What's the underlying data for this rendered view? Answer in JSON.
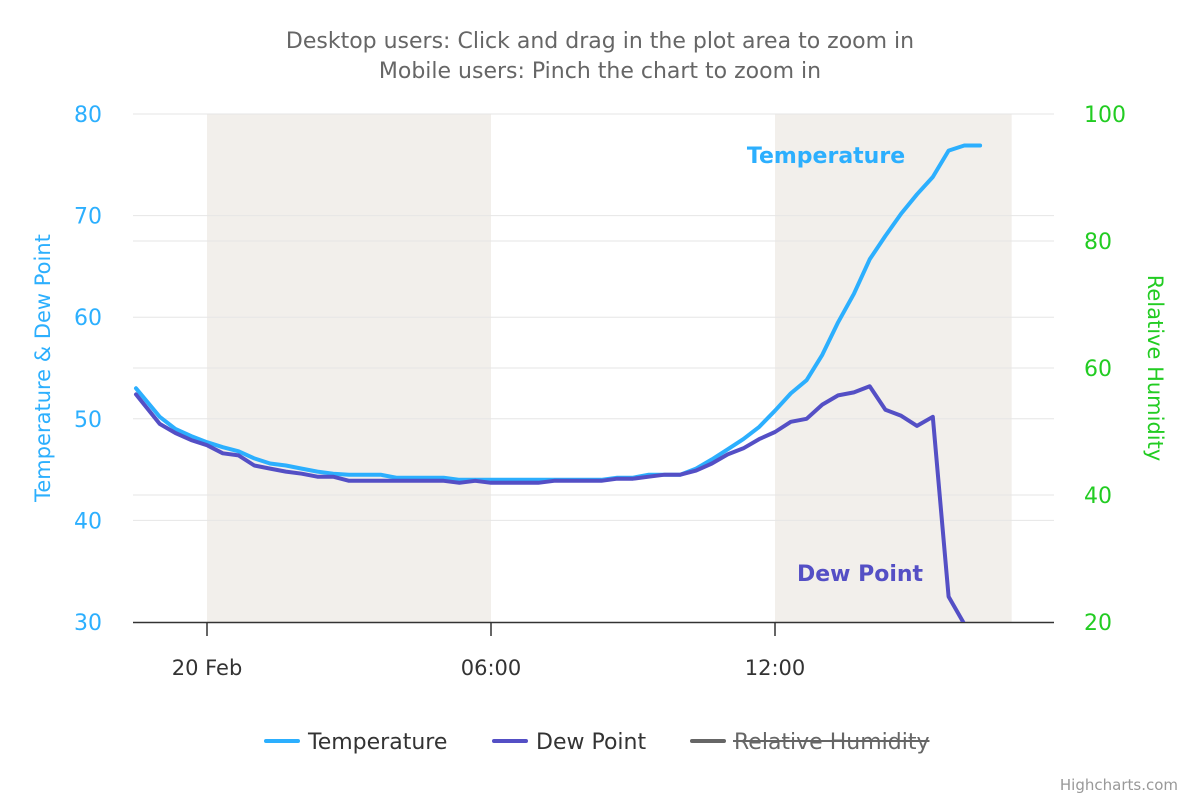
{
  "chart_data": {
    "type": "line",
    "subtitle_lines": [
      "Desktop users: Click and drag in the plot area to zoom in",
      "Mobile users: Pinch the chart to zoom in"
    ],
    "x_axis": {
      "type": "datetime",
      "range": [
        "2024-02-19T22:30",
        "2024-02-20T17:00"
      ],
      "ticks": [
        {
          "x": "2024-02-20T00:00",
          "label": "20 Feb"
        },
        {
          "x": "2024-02-20T06:00",
          "label": "06:00"
        },
        {
          "x": "2024-02-20T12:00",
          "label": "12:00"
        }
      ],
      "plot_bands": [
        {
          "from": "2024-02-20T00:00",
          "to": "2024-02-20T06:00",
          "color": "#f2efeb"
        },
        {
          "from": "2024-02-20T12:00",
          "to": "2024-02-20T17:00",
          "color": "#f2efeb"
        }
      ]
    },
    "y_axis_left": {
      "title": "Temperature & Dew Point",
      "range": [
        30,
        80
      ],
      "ticks": [
        "30",
        "40",
        "50",
        "60",
        "70",
        "80"
      ],
      "color": "#2caffe",
      "grid": true
    },
    "y_axis_right": {
      "title": "Relative Humidity",
      "range": [
        20,
        100
      ],
      "ticks": [
        "20",
        "40",
        "60",
        "80",
        "100"
      ],
      "color": "#22cc22"
    },
    "series": [
      {
        "name": "Temperature",
        "color": "#2caffe",
        "label": "Temperature",
        "points": [
          [
            "2024-02-19T22:30",
            53.0
          ],
          [
            "2024-02-19T23:00",
            50.2
          ],
          [
            "2024-02-19T23:20",
            49.0
          ],
          [
            "2024-02-19T23:40",
            48.3
          ],
          [
            "2024-02-20T00:00",
            47.7
          ],
          [
            "2024-02-20T00:20",
            47.2
          ],
          [
            "2024-02-20T00:40",
            46.8
          ],
          [
            "2024-02-20T01:00",
            46.1
          ],
          [
            "2024-02-20T01:20",
            45.6
          ],
          [
            "2024-02-20T01:40",
            45.4
          ],
          [
            "2024-02-20T02:00",
            45.1
          ],
          [
            "2024-02-20T02:20",
            44.8
          ],
          [
            "2024-02-20T02:40",
            44.6
          ],
          [
            "2024-02-20T03:00",
            44.5
          ],
          [
            "2024-02-20T03:20",
            44.5
          ],
          [
            "2024-02-20T03:40",
            44.5
          ],
          [
            "2024-02-20T04:00",
            44.2
          ],
          [
            "2024-02-20T04:20",
            44.2
          ],
          [
            "2024-02-20T04:40",
            44.2
          ],
          [
            "2024-02-20T05:00",
            44.2
          ],
          [
            "2024-02-20T05:20",
            44.0
          ],
          [
            "2024-02-20T05:40",
            44.0
          ],
          [
            "2024-02-20T06:00",
            44.0
          ],
          [
            "2024-02-20T06:20",
            44.0
          ],
          [
            "2024-02-20T06:40",
            44.0
          ],
          [
            "2024-02-20T07:00",
            44.0
          ],
          [
            "2024-02-20T07:20",
            44.0
          ],
          [
            "2024-02-20T07:40",
            44.0
          ],
          [
            "2024-02-20T08:00",
            44.0
          ],
          [
            "2024-02-20T08:20",
            44.0
          ],
          [
            "2024-02-20T08:40",
            44.2
          ],
          [
            "2024-02-20T09:00",
            44.2
          ],
          [
            "2024-02-20T09:20",
            44.5
          ],
          [
            "2024-02-20T09:40",
            44.5
          ],
          [
            "2024-02-20T10:00",
            44.5
          ],
          [
            "2024-02-20T10:20",
            45.1
          ],
          [
            "2024-02-20T10:40",
            46.0
          ],
          [
            "2024-02-20T11:00",
            47.0
          ],
          [
            "2024-02-20T11:20",
            48.0
          ],
          [
            "2024-02-20T11:40",
            49.2
          ],
          [
            "2024-02-20T12:00",
            50.8
          ],
          [
            "2024-02-20T12:20",
            52.5
          ],
          [
            "2024-02-20T12:40",
            53.8
          ],
          [
            "2024-02-20T13:00",
            56.3
          ],
          [
            "2024-02-20T13:20",
            59.5
          ],
          [
            "2024-02-20T13:40",
            62.3
          ],
          [
            "2024-02-20T14:00",
            65.7
          ],
          [
            "2024-02-20T14:20",
            68.0
          ],
          [
            "2024-02-20T14:40",
            70.2
          ],
          [
            "2024-02-20T15:00",
            72.1
          ],
          [
            "2024-02-20T15:20",
            73.8
          ],
          [
            "2024-02-20T15:40",
            76.4
          ],
          [
            "2024-02-20T16:00",
            76.9
          ],
          [
            "2024-02-20T16:20",
            76.9
          ]
        ]
      },
      {
        "name": "Dew Point",
        "color": "#544fc5",
        "label": "Dew Point",
        "points": [
          [
            "2024-02-19T22:30",
            52.4
          ],
          [
            "2024-02-19T23:00",
            49.5
          ],
          [
            "2024-02-19T23:20",
            48.6
          ],
          [
            "2024-02-19T23:40",
            47.9
          ],
          [
            "2024-02-20T00:00",
            47.4
          ],
          [
            "2024-02-20T00:20",
            46.6
          ],
          [
            "2024-02-20T00:40",
            46.4
          ],
          [
            "2024-02-20T01:00",
            45.4
          ],
          [
            "2024-02-20T01:20",
            45.1
          ],
          [
            "2024-02-20T01:40",
            44.8
          ],
          [
            "2024-02-20T02:00",
            44.6
          ],
          [
            "2024-02-20T02:20",
            44.3
          ],
          [
            "2024-02-20T02:40",
            44.3
          ],
          [
            "2024-02-20T03:00",
            43.9
          ],
          [
            "2024-02-20T03:20",
            43.9
          ],
          [
            "2024-02-20T03:40",
            43.9
          ],
          [
            "2024-02-20T04:00",
            43.9
          ],
          [
            "2024-02-20T04:20",
            43.9
          ],
          [
            "2024-02-20T04:40",
            43.9
          ],
          [
            "2024-02-20T05:00",
            43.9
          ],
          [
            "2024-02-20T05:20",
            43.7
          ],
          [
            "2024-02-20T05:40",
            43.9
          ],
          [
            "2024-02-20T06:00",
            43.7
          ],
          [
            "2024-02-20T06:20",
            43.7
          ],
          [
            "2024-02-20T06:40",
            43.7
          ],
          [
            "2024-02-20T07:00",
            43.7
          ],
          [
            "2024-02-20T07:20",
            43.9
          ],
          [
            "2024-02-20T07:40",
            43.9
          ],
          [
            "2024-02-20T08:00",
            43.9
          ],
          [
            "2024-02-20T08:20",
            43.9
          ],
          [
            "2024-02-20T08:40",
            44.1
          ],
          [
            "2024-02-20T09:00",
            44.1
          ],
          [
            "2024-02-20T09:20",
            44.3
          ],
          [
            "2024-02-20T09:40",
            44.5
          ],
          [
            "2024-02-20T10:00",
            44.5
          ],
          [
            "2024-02-20T10:20",
            44.9
          ],
          [
            "2024-02-20T10:40",
            45.6
          ],
          [
            "2024-02-20T11:00",
            46.5
          ],
          [
            "2024-02-20T11:20",
            47.1
          ],
          [
            "2024-02-20T11:40",
            48.0
          ],
          [
            "2024-02-20T12:00",
            48.7
          ],
          [
            "2024-02-20T12:20",
            49.7
          ],
          [
            "2024-02-20T12:40",
            50.0
          ],
          [
            "2024-02-20T13:00",
            51.4
          ],
          [
            "2024-02-20T13:20",
            52.3
          ],
          [
            "2024-02-20T13:40",
            52.6
          ],
          [
            "2024-02-20T14:00",
            53.2
          ],
          [
            "2024-02-20T14:20",
            50.9
          ],
          [
            "2024-02-20T14:40",
            50.3
          ],
          [
            "2024-02-20T15:00",
            49.3
          ],
          [
            "2024-02-20T15:20",
            50.2
          ],
          [
            "2024-02-20T15:40",
            32.5
          ],
          [
            "2024-02-20T16:00",
            29.8
          ]
        ]
      },
      {
        "name": "Relative Humidity",
        "color": "#666666",
        "visible": false,
        "points": []
      }
    ],
    "legend": {
      "position": "bottom-center",
      "items": [
        "Temperature",
        "Dew Point",
        "Relative Humidity"
      ]
    },
    "credits": "Highcharts.com"
  }
}
